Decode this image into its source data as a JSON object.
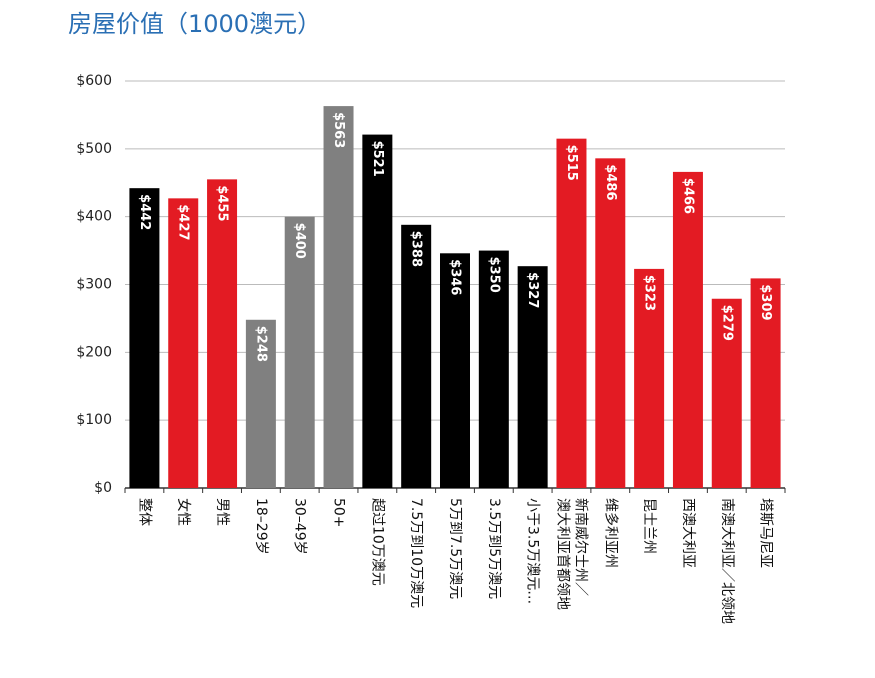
{
  "chart_data": {
    "type": "bar",
    "title": "房屋价值（1000澳元）",
    "categories": [
      "整体",
      "女性",
      "男性",
      "18–29岁",
      "30–49岁",
      "50+",
      "超过10万澳元",
      "7.5万到10万澳元",
      "5万到7.5万澳元",
      "3.5万到5万澳元",
      "小于3.5万澳元…",
      "新南威尔士州／澳大利亚首都领地",
      "维多利亚州",
      "昆士兰州",
      "西澳大利亚",
      "南澳大利亚／北领地",
      "塔斯马尼亚"
    ],
    "values": [
      442,
      427,
      455,
      248,
      400,
      563,
      521,
      388,
      346,
      350,
      327,
      515,
      486,
      323,
      466,
      279,
      309
    ],
    "value_labels": [
      "$442",
      "$427",
      "$455",
      "$248",
      "$400",
      "$563",
      "$521",
      "$388",
      "$346",
      "$350",
      "$327",
      "$515",
      "$486",
      "$323",
      "$466",
      "$279",
      "$309"
    ],
    "colors": [
      "#000000",
      "#e31b23",
      "#e31b23",
      "#808080",
      "#808080",
      "#808080",
      "#000000",
      "#000000",
      "#000000",
      "#000000",
      "#000000",
      "#e31b23",
      "#e31b23",
      "#e31b23",
      "#e31b23",
      "#e31b23",
      "#e31b23"
    ],
    "ylim": [
      0,
      600
    ],
    "yticks": [
      {
        "value": 0,
        "label": "$0"
      },
      {
        "value": 100,
        "label": "$100"
      },
      {
        "value": 200,
        "label": "$200"
      },
      {
        "value": 300,
        "label": "$300"
      },
      {
        "value": 400,
        "label": "$400"
      },
      {
        "value": 500,
        "label": "$500"
      },
      {
        "value": 600,
        "label": "$600"
      }
    ],
    "grid": true
  }
}
